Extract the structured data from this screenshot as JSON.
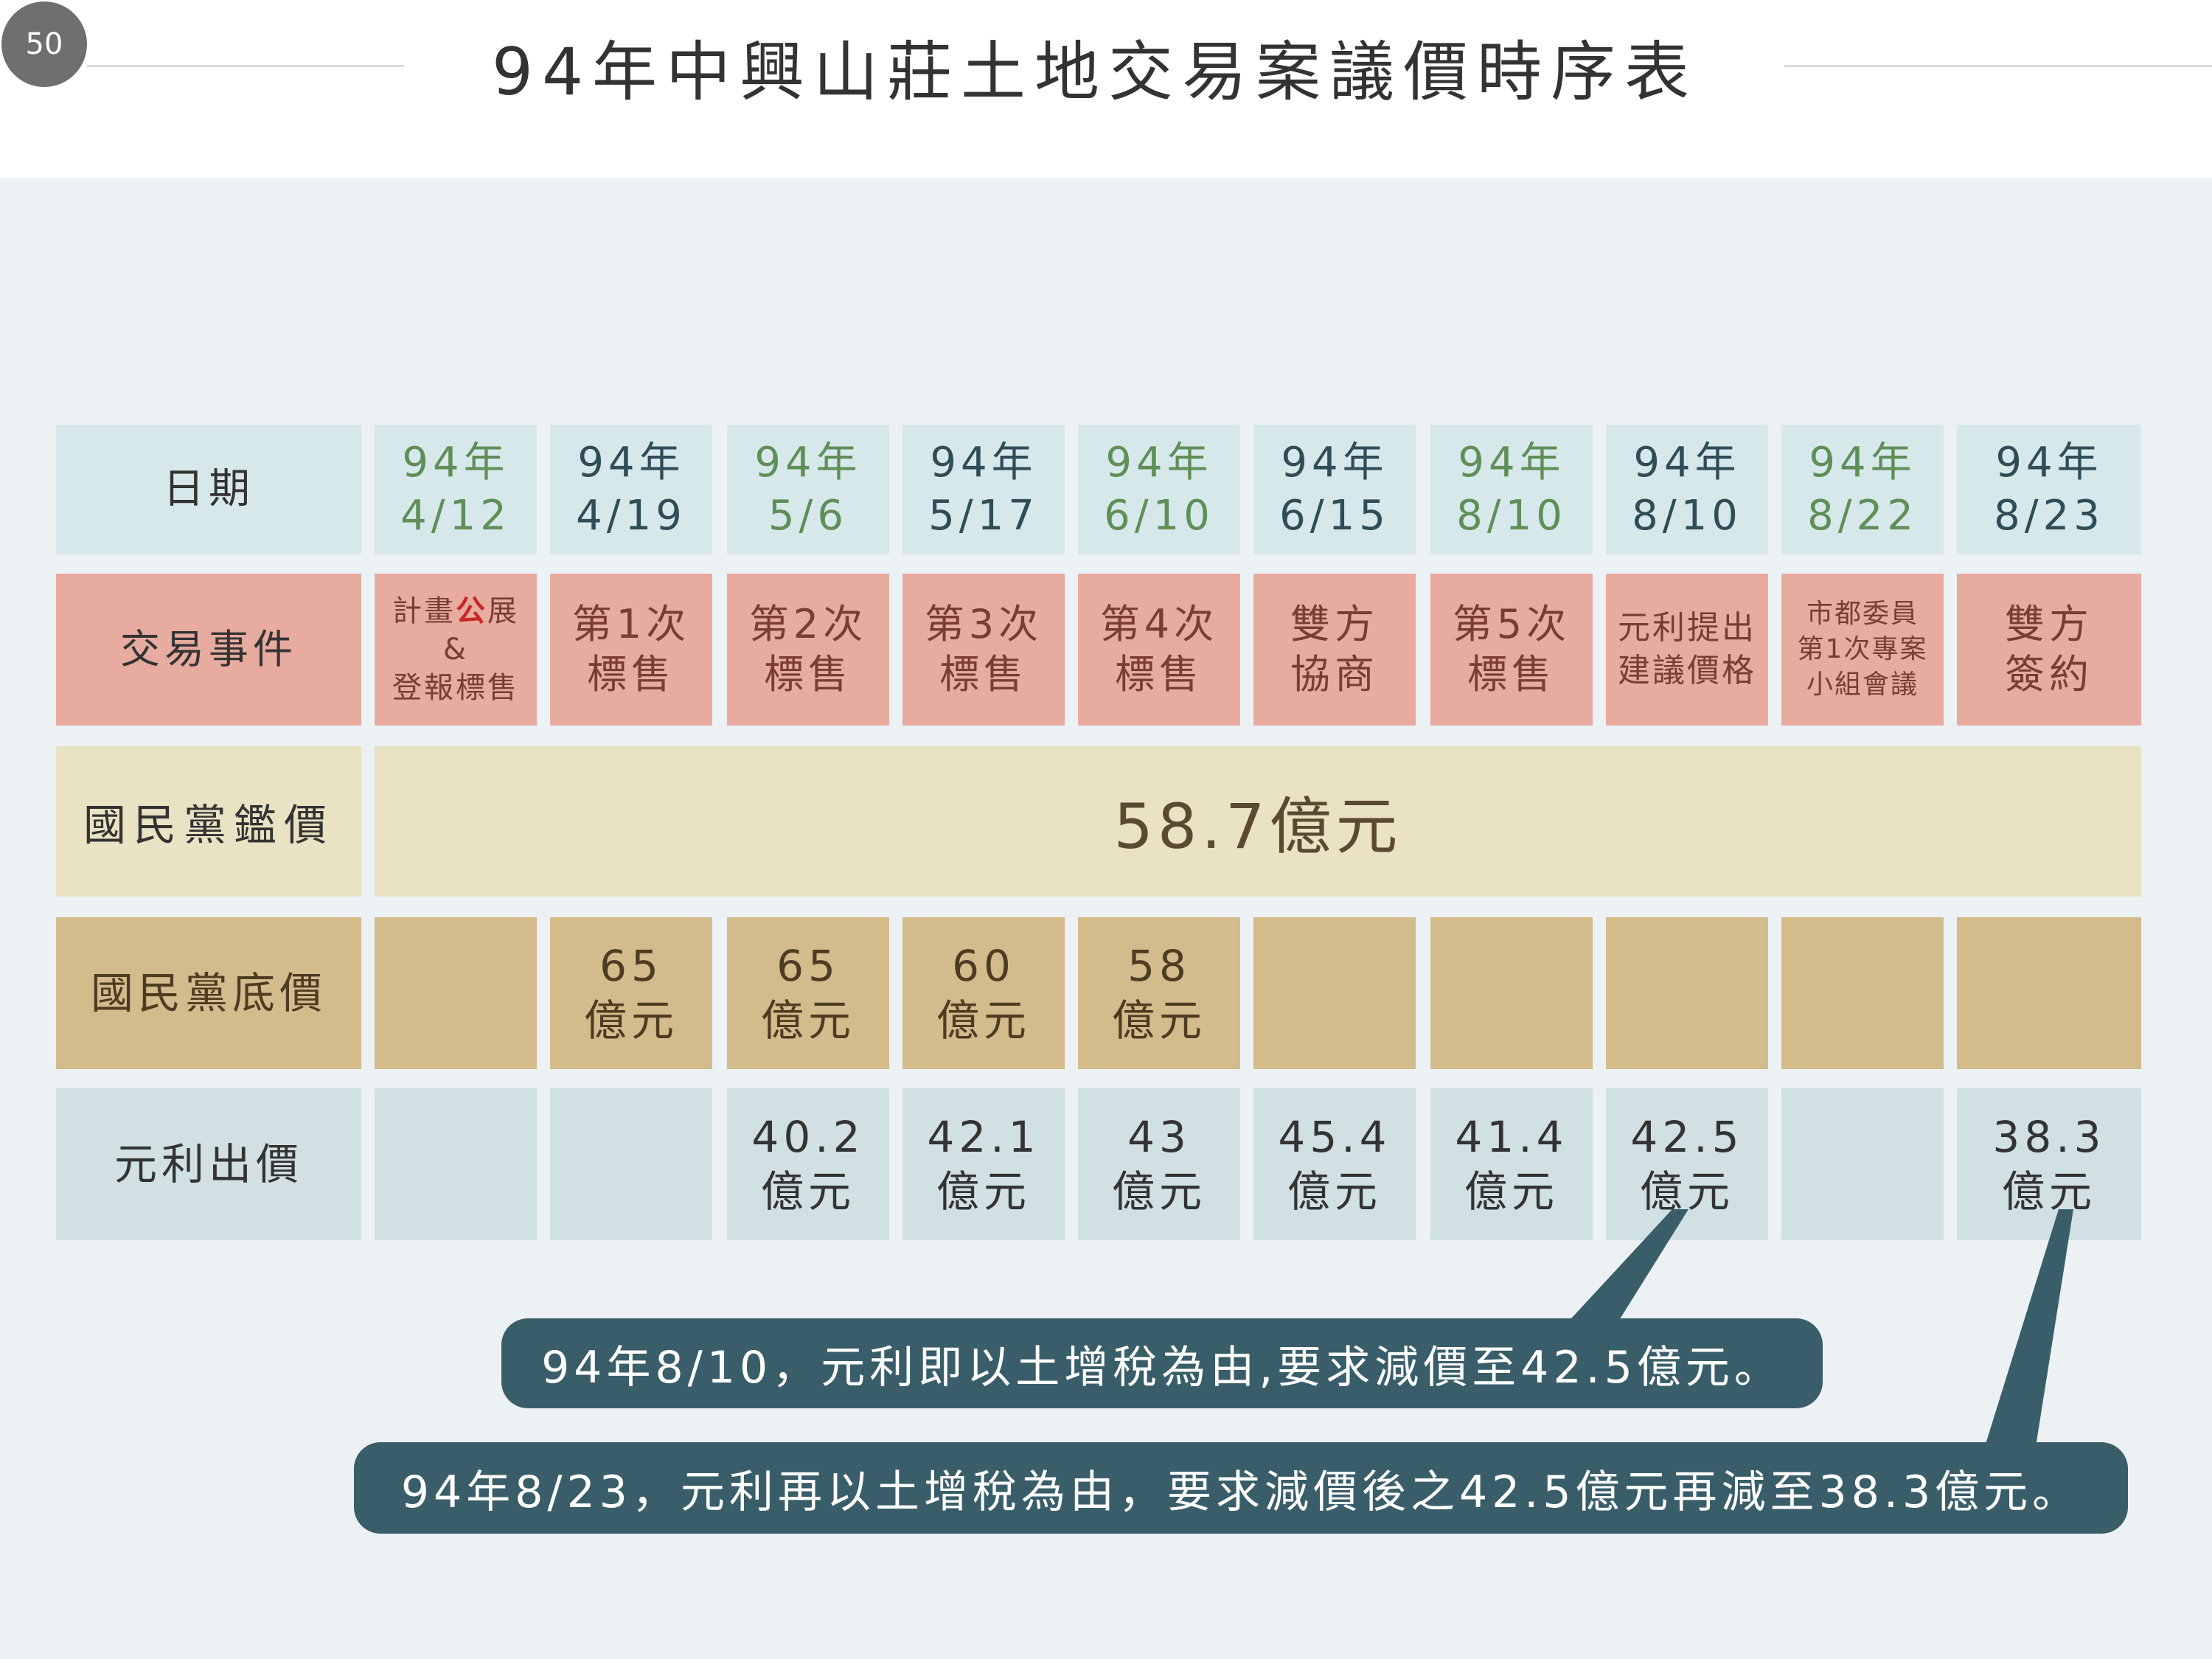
{
  "slide_number": "50",
  "title": "94年中興山莊土地交易案議價時序表",
  "rows": {
    "date_label": "日期",
    "event_label": "交易事件",
    "appraisal_label": "國民黨鑑價",
    "floor_label": "國民黨底價",
    "offer_label": "元利出價"
  },
  "columns": [
    {
      "date": "94年\n4/12",
      "event": "計畫公展\n&\n登報標售",
      "floor": "",
      "offer": ""
    },
    {
      "date": "94年\n4/19",
      "event": "第1次\n標售",
      "floor": "65\n億元",
      "offer": ""
    },
    {
      "date": "94年\n5/6",
      "event": "第2次\n標售",
      "floor": "65\n億元",
      "offer": "40.2\n億元"
    },
    {
      "date": "94年\n5/17",
      "event": "第3次\n標售",
      "floor": "60\n億元",
      "offer": "42.1\n億元"
    },
    {
      "date": "94年\n6/10",
      "event": "第4次\n標售",
      "floor": "58\n億元",
      "offer": "43\n億元"
    },
    {
      "date": "94年\n6/15",
      "event": "雙方\n協商",
      "floor": "",
      "offer": "45.4\n億元"
    },
    {
      "date": "94年\n8/10",
      "event": "第5次\n標售",
      "floor": "",
      "offer": "41.4\n億元"
    },
    {
      "date": "94年\n8/10",
      "event": "元利提出\n建議價格",
      "floor": "",
      "offer": "42.5\n億元"
    },
    {
      "date": "94年\n8/22",
      "event": "市都委員\n第1次專案\n小組會議",
      "floor": "",
      "offer": ""
    },
    {
      "date": "94年\n8/23",
      "event": "雙方\n簽約",
      "floor": "",
      "offer": "38.3\n億元"
    }
  ],
  "appraisal_value": "58.7億元",
  "callouts": [
    "94年8/10，元利即以土增稅為由,要求減價至42.5億元。",
    "94年8/23，元利再以土增稅為由，要求減價後之42.5億元再減至38.3億元。"
  ],
  "colors": {
    "date_odd": "#5e8f58",
    "date_even": "#2f4d57",
    "highlight_char": "#c62828",
    "callout_bg": "#395e6a"
  }
}
